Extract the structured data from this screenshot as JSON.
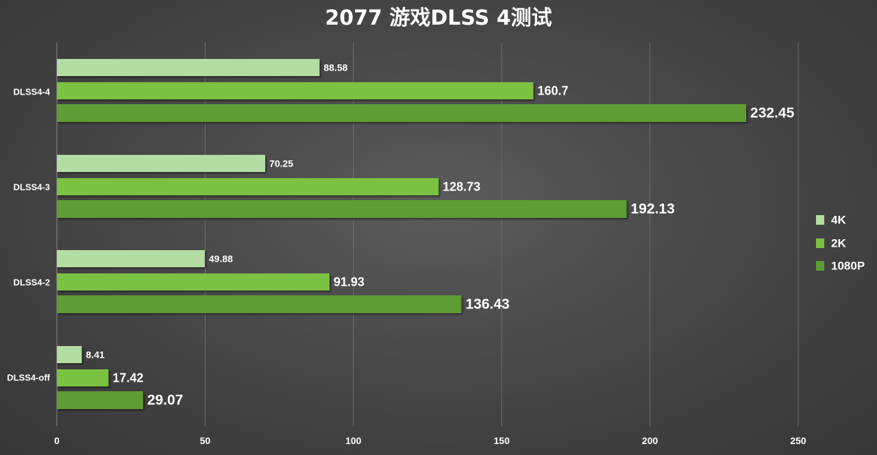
{
  "chart_data": {
    "type": "bar",
    "orientation": "horizontal",
    "title": "2077 游戏DLSS 4测试",
    "categories": [
      "DLSS4-4",
      "DLSS4-3",
      "DLSS4-2",
      "DLSS4-off"
    ],
    "series": [
      {
        "name": "4K",
        "color": "#b4dca4",
        "values": [
          88.58,
          70.25,
          49.88,
          8.41
        ]
      },
      {
        "name": "2K",
        "color": "#7cc242",
        "values": [
          160.7,
          128.73,
          91.93,
          17.42
        ]
      },
      {
        "name": "1080P",
        "color": "#5e9c35",
        "values": [
          232.45,
          192.13,
          136.43,
          29.07
        ]
      }
    ],
    "data_labels": [
      [
        "88.58",
        "160.7",
        "232.45"
      ],
      [
        "70.25",
        "128.73",
        "192.13"
      ],
      [
        "49.88",
        "91.93",
        "136.43"
      ],
      [
        "8.41",
        "17.42",
        "29.07"
      ]
    ],
    "xlim": [
      0,
      250
    ],
    "xticks": [
      0,
      50,
      100,
      150,
      200,
      250
    ],
    "xtick_labels": [
      "0",
      "50",
      "100",
      "150",
      "200",
      "250"
    ],
    "grid": true,
    "legend_position": "right"
  }
}
